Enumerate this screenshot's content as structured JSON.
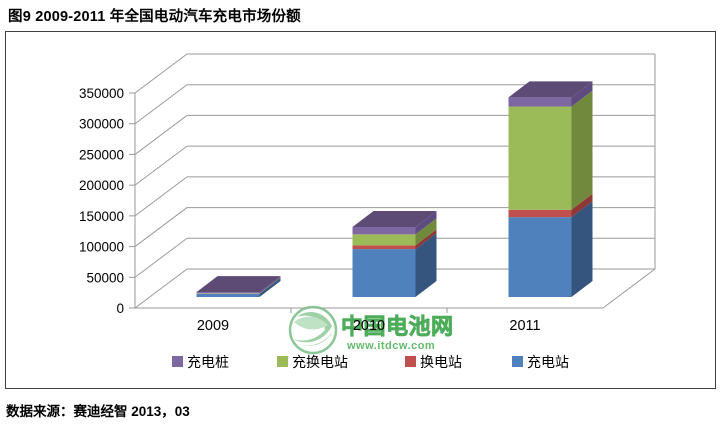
{
  "title": "图9 2009-2011 年全国电动汽车充电市场份额",
  "caption": "数据来源：赛迪经智  2013，03",
  "watermark": {
    "name": "中国电池网",
    "url": "www.itdcw.com",
    "color": "#2E9E3E",
    "logo_icon": "green-globe-swoosh"
  },
  "chart_data": {
    "type": "bar",
    "variant": "3d-stacked-column",
    "categories": [
      "2009",
      "2010",
      "2011"
    ],
    "series": [
      {
        "name": "充电站",
        "color": "#4F81BD",
        "side": "#35557F",
        "top": "#3D6293",
        "values": [
          5000,
          78000,
          130000
        ]
      },
      {
        "name": "换电站",
        "color": "#C0504D",
        "side": "#8E3835",
        "top": "#9E403D",
        "values": [
          300,
          6000,
          12000
        ]
      },
      {
        "name": "充换电站",
        "color": "#9BBB59",
        "side": "#71893C",
        "top": "#7E9A43",
        "values": [
          700,
          18000,
          168000
        ]
      },
      {
        "name": "充电桩",
        "color": "#7E68A2",
        "side": "#5E4B80",
        "top": "#5D4A75",
        "values": [
          2000,
          12000,
          15000
        ]
      }
    ],
    "totals": [
      8000,
      114000,
      325000
    ],
    "legend_order": [
      "充电桩",
      "充换电站",
      "换电站",
      "充电站"
    ],
    "legend_position": "bottom",
    "title": "",
    "xlabel": "",
    "ylabel": "",
    "ylim": [
      0,
      350000
    ],
    "ytick_step": 50000,
    "ytick_labels": [
      "0",
      "50000",
      "100000",
      "150000",
      "200000",
      "250000",
      "300000",
      "350000"
    ],
    "grid": true,
    "axis_color": "#9A9A9A"
  }
}
